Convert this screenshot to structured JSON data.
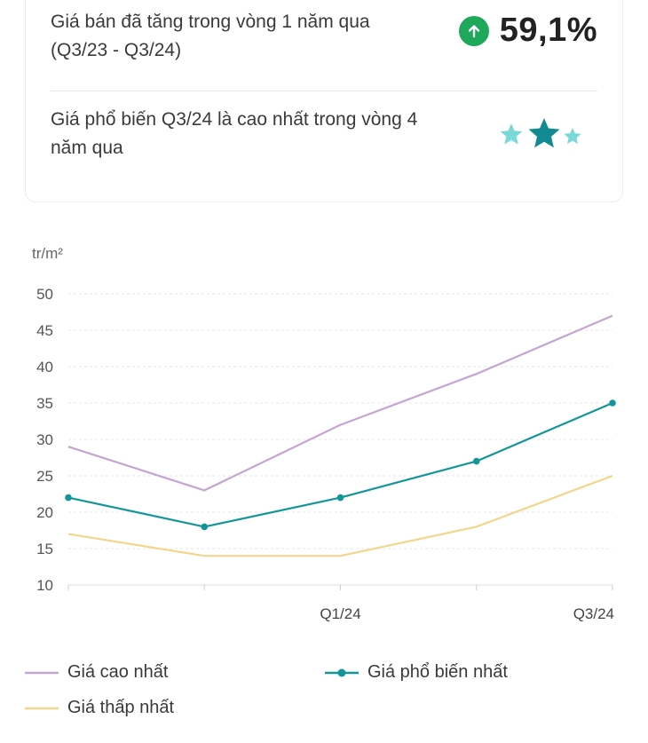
{
  "summary": {
    "price_change_text": "Giá bán đã tăng trong vòng 1 năm qua (Q3/23 - Q3/24)",
    "price_change_value": "59,1%",
    "price_change_direction": "up",
    "popular_price_text": "Giá phổ biến Q3/24 là cao nhất trong vòng 4 năm qua",
    "icons": [
      "arrow-up-icon",
      "star-icon"
    ]
  },
  "colors": {
    "up": "#1ea85a",
    "star_small": "#7ad8d8",
    "star_big": "#118a92",
    "highest": "#c3a5d4",
    "popular": "#12969a",
    "lowest": "#f3d68d"
  },
  "chart_data": {
    "type": "line",
    "ylabel": "tr/m²",
    "ylim": [
      10,
      50
    ],
    "yticks": [
      10,
      15,
      20,
      25,
      30,
      35,
      40,
      45,
      50
    ],
    "x": [
      "",
      "",
      "Q1/24",
      "",
      "Q3/24"
    ],
    "series": [
      {
        "name": "Giá cao nhất",
        "values": [
          29,
          23,
          32,
          39,
          47
        ],
        "markers": false,
        "color": "#c3a5d4"
      },
      {
        "name": "Giá phổ biến nhất",
        "values": [
          22,
          18,
          22,
          27,
          35
        ],
        "markers": true,
        "color": "#12969a"
      },
      {
        "name": "Giá thấp nhất",
        "values": [
          17,
          14,
          14,
          18,
          25
        ],
        "markers": false,
        "color": "#f3d68d"
      }
    ],
    "grid": true
  }
}
